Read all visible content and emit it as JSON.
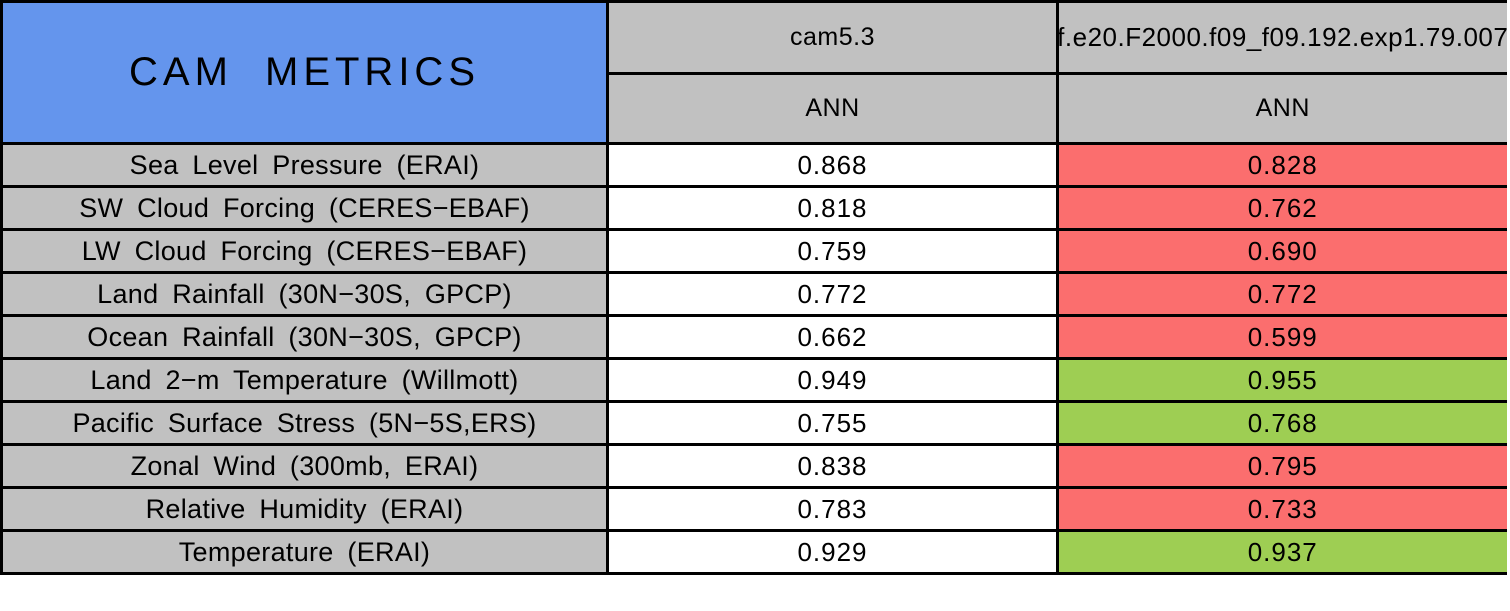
{
  "theme": {
    "title_bg": "#6495ED",
    "header_bg": "#C1C1C1",
    "row_label_bg": "#C1C1C1",
    "value_bg": "#FFFFFF",
    "worse_bg": "#FB6E6E",
    "better_bg": "#9ECE53",
    "border": "#000000",
    "text": "#000000"
  },
  "table": {
    "title": "CAM METRICS",
    "columns": [
      {
        "model": "cam5.3",
        "season": "ANN"
      },
      {
        "model": "f.e20.F2000.f09_f09.192.exp1.79.007",
        "season": "ANN"
      }
    ],
    "rows": [
      {
        "metric": "Sea Level Pressure (ERAI)",
        "baseline": "0.868",
        "experiment": "0.828",
        "experiment_status": "worse"
      },
      {
        "metric": "SW Cloud Forcing (CERES−EBAF)",
        "baseline": "0.818",
        "experiment": "0.762",
        "experiment_status": "worse"
      },
      {
        "metric": "LW Cloud Forcing (CERES−EBAF)",
        "baseline": "0.759",
        "experiment": "0.690",
        "experiment_status": "worse"
      },
      {
        "metric": "Land Rainfall (30N−30S, GPCP)",
        "baseline": "0.772",
        "experiment": "0.772",
        "experiment_status": "worse"
      },
      {
        "metric": "Ocean Rainfall (30N−30S, GPCP)",
        "baseline": "0.662",
        "experiment": "0.599",
        "experiment_status": "worse"
      },
      {
        "metric": "Land 2−m Temperature (Willmott)",
        "baseline": "0.949",
        "experiment": "0.955",
        "experiment_status": "better"
      },
      {
        "metric": "Pacific Surface Stress (5N−5S,ERS)",
        "baseline": "0.755",
        "experiment": "0.768",
        "experiment_status": "better"
      },
      {
        "metric": "Zonal Wind (300mb, ERAI)",
        "baseline": "0.838",
        "experiment": "0.795",
        "experiment_status": "worse"
      },
      {
        "metric": "Relative Humidity (ERAI)",
        "baseline": "0.783",
        "experiment": "0.733",
        "experiment_status": "worse"
      },
      {
        "metric": "Temperature (ERAI)",
        "baseline": "0.929",
        "experiment": "0.937",
        "experiment_status": "better"
      }
    ]
  },
  "chart_data": {
    "type": "table",
    "title": "CAM METRICS",
    "categories": [
      "Sea Level Pressure (ERAI)",
      "SW Cloud Forcing (CERES−EBAF)",
      "LW Cloud Forcing (CERES−EBAF)",
      "Land Rainfall (30N−30S, GPCP)",
      "Ocean Rainfall (30N−30S, GPCP)",
      "Land 2−m Temperature (Willmott)",
      "Pacific Surface Stress (5N−5S,ERS)",
      "Zonal Wind (300mb, ERAI)",
      "Relative Humidity (ERAI)",
      "Temperature (ERAI)"
    ],
    "series": [
      {
        "name": "cam5.3 (ANN)",
        "values": [
          0.868,
          0.818,
          0.759,
          0.772,
          0.662,
          0.949,
          0.755,
          0.838,
          0.783,
          0.929
        ]
      },
      {
        "name": "f.e20.F2000.f09_f09.192.exp1.79.007 (ANN)",
        "values": [
          0.828,
          0.762,
          0.69,
          0.772,
          0.599,
          0.955,
          0.768,
          0.795,
          0.733,
          0.937
        ]
      }
    ],
    "cell_status_second_series": [
      "worse",
      "worse",
      "worse",
      "worse",
      "worse",
      "better",
      "better",
      "worse",
      "worse",
      "better"
    ],
    "legend_semantics": {
      "red": "experiment worse or equal vs baseline",
      "green": "experiment better than baseline"
    }
  }
}
